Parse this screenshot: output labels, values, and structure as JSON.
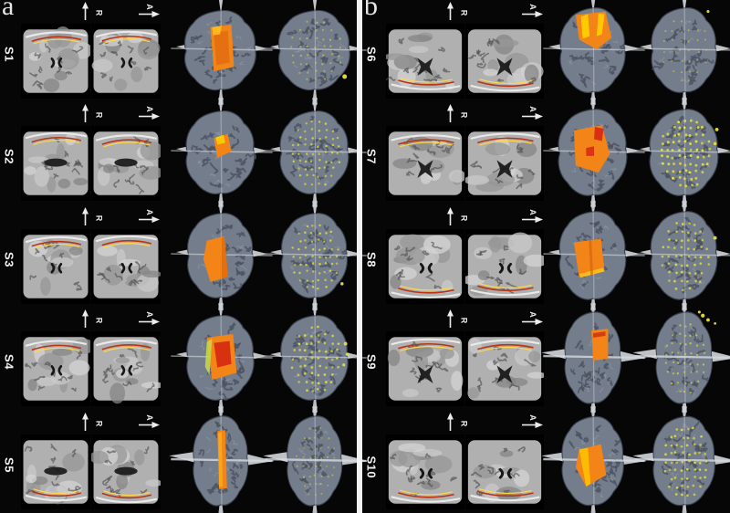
{
  "figure": {
    "background": "#060606",
    "divider_color": "#f2f2f2",
    "orientation": {
      "up_label": "R",
      "right_label": "A"
    },
    "colors": {
      "brain_gray": "#747d8b",
      "sulci": "#4b5262",
      "sulci_highlight": "#9aa2b1",
      "plane_white": "#d3d7dd",
      "patch_orange": "#f28418",
      "patch_red": "#d62c12",
      "patch_yellow": "#ffd000",
      "dot_yellow": "#e8e23a",
      "trace_red": "#b83414",
      "trace_yellow": "#ffd84a",
      "skull_white": "#ececec"
    },
    "panels": [
      {
        "label": "a",
        "subjects": [
          {
            "label": "S1",
            "trace": "top",
            "ventricle": "small",
            "brain": {
              "sx": 1.04,
              "sy": 0.94,
              "wings": "short"
            },
            "patch": [
              {
                "points": [
                  [
                    37,
                    30
                  ],
                  [
                    61,
                    27
                  ],
                  [
                    64,
                    75
                  ],
                  [
                    41,
                    80
                  ]
                ],
                "color": "#f28418",
                "opacity": 1
              },
              {
                "points": [
                  [
                    41,
                    36
                  ],
                  [
                    57,
                    34
                  ],
                  [
                    59,
                    70
                  ],
                  [
                    44,
                    73
                  ]
                ],
                "color": "#e06a10",
                "opacity": 0.75
              },
              {
                "points": [
                  [
                    39,
                    30
                  ],
                  [
                    50,
                    28
                  ],
                  [
                    48,
                    38
                  ],
                  [
                    40,
                    39
                  ]
                ],
                "color": "#ffc81e",
                "opacity": 0.8
              }
            ],
            "dots": {
              "cols": 7,
              "rows": 8,
              "opacity": 0.55,
              "r": 1.2,
              "extra": [
                [
                  83,
                  86,
                  2.6
                ]
              ]
            }
          },
          {
            "label": "S2",
            "trace": "top",
            "ventricle": "slab",
            "brain": {
              "sx": 1.0,
              "sy": 0.98,
              "wings": "short"
            },
            "patch": [
              {
                "points": [
                  [
                    41,
                    40
                  ],
                  [
                    57,
                    35
                  ],
                  [
                    61,
                    55
                  ],
                  [
                    45,
                    62
                  ]
                ],
                "color": "#f28418",
                "opacity": 1
              },
              {
                "points": [
                  [
                    43,
                    39
                  ],
                  [
                    52,
                    36
                  ],
                  [
                    54,
                    45
                  ],
                  [
                    45,
                    47
                  ]
                ],
                "color": "#ffd000",
                "opacity": 0.9
              }
            ],
            "dots": {
              "cols": 8,
              "rows": 9,
              "opacity": 0.8,
              "r": 1.3,
              "extra": []
            }
          },
          {
            "label": "S3",
            "trace": "top",
            "ventricle": "small",
            "brain": {
              "sx": 0.96,
              "sy": 1.0,
              "wings": "short"
            },
            "patch": [
              {
                "points": [
                  [
                    33,
                    39
                  ],
                  [
                    53,
                    34
                  ],
                  [
                    57,
                    80
                  ],
                  [
                    37,
                    86
                  ],
                  [
                    29,
                    60
                  ]
                ],
                "color": "#f28418",
                "opacity": 1
              },
              {
                "points": [
                  [
                    50,
                    36
                  ],
                  [
                    53,
                    34
                  ],
                  [
                    57,
                    80
                  ],
                  [
                    50,
                    82
                  ]
                ],
                "color": "#e06a10",
                "opacity": 0.8
              }
            ],
            "dots": {
              "cols": 8,
              "rows": 9,
              "opacity": 0.85,
              "r": 1.3,
              "extra": [
                [
                  80,
                  88,
                  1.8
                ]
              ]
            }
          },
          {
            "label": "S4",
            "trace": "top",
            "ventricle": "small",
            "brain": {
              "sx": 0.98,
              "sy": 1.0,
              "wings": "short"
            },
            "patch": [
              {
                "points": [
                  [
                    33,
                    33
                  ],
                  [
                    63,
                    29
                  ],
                  [
                    67,
                    73
                  ],
                  [
                    39,
                    81
                  ]
                ],
                "color": "#f28418",
                "opacity": 1
              },
              {
                "points": [
                  [
                    41,
                    39
                  ],
                  [
                    59,
                    37
                  ],
                  [
                    61,
                    63
                  ],
                  [
                    45,
                    67
                  ]
                ],
                "color": "#d62c12",
                "opacity": 0.95
              },
              {
                "points": [
                  [
                    33,
                    38
                  ],
                  [
                    39,
                    34
                  ],
                  [
                    36,
                    76
                  ],
                  [
                    31,
                    66
                  ]
                ],
                "color": "#c8dc46",
                "opacity": 0.85
              }
            ],
            "dots": {
              "cols": 8,
              "rows": 9,
              "opacity": 0.9,
              "r": 1.4,
              "extra": [
                [
                  84,
                  40,
                  2
                ],
                [
                  86,
                  52,
                  1.8
                ],
                [
                  82,
                  64,
                  1.6
                ]
              ]
            }
          },
          {
            "label": "S5",
            "trace": "bottom",
            "ventricle": "slab",
            "brain": {
              "sx": 0.8,
              "sy": 1.06,
              "wings": "long"
            },
            "patch": [
              {
                "points": [
                  [
                    45,
                    22
                  ],
                  [
                    54,
                    21
                  ],
                  [
                    56,
                    87
                  ],
                  [
                    47,
                    88
                  ]
                ],
                "color": "#f28418",
                "opacity": 1
              },
              {
                "points": [
                  [
                    46,
                    24
                  ],
                  [
                    50,
                    23
                  ],
                  [
                    51,
                    85
                  ],
                  [
                    47,
                    86
                  ]
                ],
                "color": "#ffc81e",
                "opacity": 0.5
              }
            ],
            "dots": {
              "cols": 7,
              "rows": 8,
              "opacity": 0.5,
              "r": 1.1,
              "extra": []
            }
          }
        ]
      },
      {
        "label": "b",
        "subjects": [
          {
            "label": "S6",
            "trace": "bottom",
            "ventricle": "butterfly",
            "brain": {
              "sx": 0.95,
              "sy": 1.0,
              "wings": "short"
            },
            "patch": [
              {
                "points": [
                  [
                    29,
                    16
                  ],
                  [
                    63,
                    12
                  ],
                  [
                    70,
                    42
                  ],
                  [
                    53,
                    55
                  ],
                  [
                    33,
                    44
                  ]
                ],
                "color": "#f28418",
                "opacity": 1
              },
              {
                "points": [
                  [
                    35,
                    18
                  ],
                  [
                    43,
                    15
                  ],
                  [
                    45,
                    40
                  ],
                  [
                    37,
                    43
                  ]
                ],
                "color": "#ffd200",
                "opacity": 0.9
              },
              {
                "points": [
                  [
                    55,
                    14
                  ],
                  [
                    62,
                    15
                  ],
                  [
                    59,
                    38
                  ],
                  [
                    53,
                    40
                  ]
                ],
                "color": "#ffd200",
                "opacity": 0.85
              }
            ],
            "dots": {
              "cols": 6,
              "rows": 7,
              "opacity": 0.5,
              "r": 1.1,
              "extra": [
                [
                  76,
                  12,
                  1.6
                ]
              ]
            }
          },
          {
            "label": "S7",
            "trace": "top",
            "ventricle": "butterfly",
            "brain": {
              "sx": 1.0,
              "sy": 1.02,
              "wings": "short"
            },
            "patch": [
              {
                "points": [
                  [
                    27,
                    31
                  ],
                  [
                    59,
                    25
                  ],
                  [
                    68,
                    58
                  ],
                  [
                    55,
                    79
                  ],
                  [
                    29,
                    71
                  ]
                ],
                "color": "#f28418",
                "opacity": 1
              },
              {
                "points": [
                  [
                    51,
                    27
                  ],
                  [
                    61,
                    29
                  ],
                  [
                    59,
                    43
                  ],
                  [
                    50,
                    41
                  ]
                ],
                "color": "#d62c12",
                "opacity": 0.95
              },
              {
                "points": [
                  [
                    41,
                    51
                  ],
                  [
                    50,
                    49
                  ],
                  [
                    50,
                    60
                  ],
                  [
                    41,
                    60
                  ]
                ],
                "color": "#d62c12",
                "opacity": 0.9
              }
            ],
            "dots": {
              "cols": 9,
              "rows": 10,
              "opacity": 1,
              "r": 1.5,
              "extra": [
                [
                  86,
                  30,
                  2
                ],
                [
                  84,
                  46,
                  1.8
                ]
              ]
            }
          },
          {
            "label": "S8",
            "trace": "bottom",
            "ventricle": "small",
            "brain": {
              "sx": 0.97,
              "sy": 1.04,
              "wings": "short"
            },
            "patch": [
              {
                "points": [
                  [
                    27,
                    41
                  ],
                  [
                    58,
                    37
                  ],
                  [
                    62,
                    74
                  ],
                  [
                    33,
                    81
                  ]
                ],
                "color": "#f28418",
                "opacity": 1
              },
              {
                "points": [
                  [
                    33,
                    77
                  ],
                  [
                    60,
                    70
                  ],
                  [
                    62,
                    74
                  ],
                  [
                    35,
                    81
                  ]
                ],
                "color": "#ffc81e",
                "opacity": 0.8
              },
              {
                "points": [
                  [
                    44,
                    38
                  ],
                  [
                    47,
                    38
                  ],
                  [
                    49,
                    78
                  ],
                  [
                    46,
                    79
                  ]
                ],
                "color": "#d06008",
                "opacity": 0.6
              }
            ],
            "dots": {
              "cols": 8,
              "rows": 9,
              "opacity": 0.9,
              "r": 1.4,
              "extra": [
                [
                  84,
                  36,
                  2
                ]
              ]
            }
          },
          {
            "label": "S9",
            "trace": "top",
            "ventricle": "butterfly",
            "brain": {
              "sx": 0.82,
              "sy": 1.08,
              "wings": "long"
            },
            "patch": [
              {
                "points": [
                  [
                    47,
                    25
                  ],
                  [
                    66,
                    23
                  ],
                  [
                    66,
                    57
                  ],
                  [
                    49,
                    59
                  ]
                ],
                "color": "#f28418",
                "opacity": 1
              },
              {
                "points": [
                  [
                    49,
                    28
                  ],
                  [
                    63,
                    26
                  ],
                  [
                    63,
                    31
                  ],
                  [
                    49,
                    33
                  ]
                ],
                "color": "#cc3010",
                "opacity": 0.85
              }
            ],
            "dots": {
              "cols": 7,
              "rows": 8,
              "opacity": 0.7,
              "r": 1.2,
              "extra": [
                [
                  70,
                  8,
                  2.2
                ],
                [
                  76,
                  13,
                  2
                ],
                [
                  66,
                  4,
                  1.6
                ],
                [
                  84,
                  17,
                  1.4
                ]
              ]
            }
          },
          {
            "label": "S10",
            "trace": "bottom",
            "ventricle": "small",
            "brain": {
              "sx": 0.9,
              "sy": 1.05,
              "wings": "long"
            },
            "patch": [
              {
                "points": [
                  [
                    33,
                    43
                  ],
                  [
                    58,
                    37
                  ],
                  [
                    64,
                    72
                  ],
                  [
                    41,
                    85
                  ],
                  [
                    29,
                    63
                  ]
                ],
                "color": "#f28418",
                "opacity": 1
              },
              {
                "points": [
                  [
                    33,
                    43
                  ],
                  [
                    43,
                    41
                  ],
                  [
                    46,
                    82
                  ],
                  [
                    41,
                    85
                  ]
                ],
                "color": "#ffc104",
                "opacity": 0.9
              }
            ],
            "dots": {
              "cols": 8,
              "rows": 9,
              "opacity": 0.9,
              "r": 1.4,
              "extra": []
            }
          }
        ]
      }
    ]
  }
}
